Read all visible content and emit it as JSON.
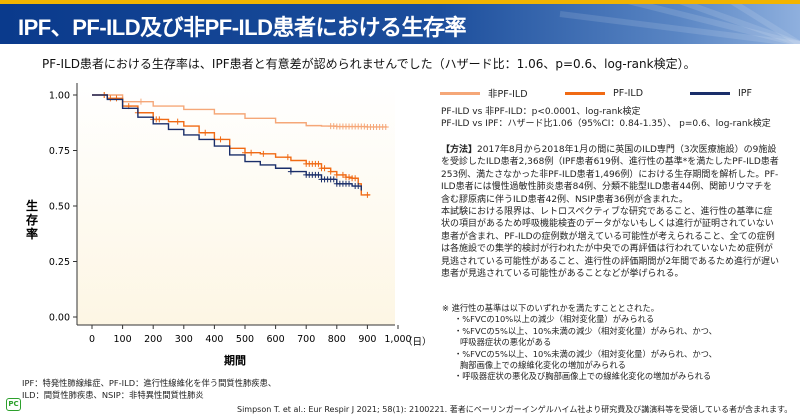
{
  "header": {
    "title": "IPF、PF-ILD及び非PF-ILD患者における生存率"
  },
  "subtitle": "PF-ILD患者における生存率は、IPF患者と有意差が認められませんでした（ハザード比：1.06、p=0.6、log-rank検定）。",
  "chart_data": {
    "type": "line",
    "xlabel": "期間",
    "xunit": "（日）",
    "ylabel": "生存率",
    "xlim": [
      0,
      1000
    ],
    "ylim": [
      0,
      1
    ],
    "xticks": [
      "0",
      "100",
      "200",
      "300",
      "400",
      "500",
      "600",
      "700",
      "800",
      "900",
      "1,000"
    ],
    "yticks": [
      "0.00",
      "0.25",
      "0.50",
      "0.75",
      "1.00"
    ],
    "legend": "top",
    "series": [
      {
        "name": "非PF-ILD",
        "color": "#f5a778",
        "x": [
          0,
          100,
          200,
          300,
          400,
          500,
          600,
          700,
          750,
          800,
          900,
          964
        ],
        "y": [
          1,
          0.97,
          0.95,
          0.935,
          0.915,
          0.895,
          0.875,
          0.862,
          0.86,
          0.858,
          0.856,
          0.856
        ],
        "censor": [
          40,
          160,
          780,
          790,
          800,
          810,
          820,
          830,
          840,
          850,
          860,
          870,
          880,
          890,
          900,
          910,
          920,
          930,
          940,
          950,
          960
        ]
      },
      {
        "name": "PF-ILD",
        "color": "#f06a14",
        "x": [
          0,
          50,
          100,
          150,
          200,
          250,
          300,
          350,
          400,
          450,
          500,
          550,
          600,
          650,
          700,
          750,
          780,
          800,
          830,
          850,
          870,
          880,
          908
        ],
        "y": [
          1,
          0.985,
          0.95,
          0.92,
          0.89,
          0.88,
          0.86,
          0.83,
          0.8,
          0.76,
          0.74,
          0.735,
          0.72,
          0.705,
          0.69,
          0.67,
          0.655,
          0.64,
          0.63,
          0.625,
          0.6,
          0.55,
          0.55
        ],
        "censor": [
          40,
          60,
          80,
          120,
          150,
          200,
          210,
          220,
          280,
          370,
          420,
          500,
          520,
          560,
          640,
          700,
          710,
          720,
          730,
          740,
          750,
          760,
          780,
          800,
          820,
          830,
          840,
          850,
          860,
          900
        ]
      },
      {
        "name": "IPF",
        "color": "#1a2e6a",
        "x": [
          0,
          50,
          100,
          150,
          200,
          250,
          300,
          350,
          400,
          450,
          500,
          550,
          600,
          650,
          700,
          750,
          800,
          850,
          880
        ],
        "y": [
          1,
          0.98,
          0.94,
          0.9,
          0.87,
          0.845,
          0.82,
          0.8,
          0.77,
          0.73,
          0.7,
          0.685,
          0.67,
          0.655,
          0.64,
          0.62,
          0.6,
          0.59,
          0.57
        ],
        "censor": [
          650,
          700,
          710,
          720,
          730,
          740,
          750,
          760,
          770,
          780,
          790,
          800,
          810,
          820,
          830,
          840,
          860,
          870
        ]
      }
    ]
  },
  "stats": [
    "PF-ILD vs 非PF-ILD：p<0.0001、log-rank検定",
    "PF-ILD vs IPF：ハザード比1.06（95%CI：0.84-1.35）、 p=0.6、log-rank検定"
  ],
  "method": {
    "label": "【方法】",
    "text": "2017年8月から2018年1月の間に英国のILD専門（3次医療施設）の9施設を受診したILD患者2,368例（IPF患者619例、進行性の基準*を満たしたPF-ILD患者253例、満たさなかった非PF-ILD患者1,496例）における生存期間を解析した。PF-ILD患者には慢性過敏性肺炎患者84例、分類不能型ILD患者44例、関節リウマチを含む膠原病に伴うILD患者42例、NSIP患者36例が含まれた。",
    "limits": "本試験における限界は、レトロスペクティブな研究であること、進行性の基準に症状の項目があるため呼吸機能検査のデータがないもしくは進行が証明されていない患者が含まれ、PF-ILDの症例数が増えている可能性が考えられること、全ての症例は各施設での集学的検討が行われたが中央での再評価は行われていないため症例が見逃されている可能性があること、進行性の評価期間が2年間であるため進行が遅い患者が見逃されている可能性があることなどが挙げられる。"
  },
  "note": {
    "head": "※ 進行性の基準は以下のいずれかを満たすこととされた。",
    "items": [
      "・%FVCの10%以上の減少（相対変化量）がみられる",
      "・%FVCの5%以上、10%未満の減少（相対変化量）がみられ、かつ、",
      "呼吸器症状の悪化がある",
      "・%FVCの5%以上、10%未満の減少（相対変化量）がみられ、かつ、",
      "胸部画像上での線維化変化の増加がみられる",
      "・呼吸器症状の悪化及び胸部画像上での線維化変化の増加がみられる"
    ]
  },
  "abbr": [
    "IPF：特発性肺線維症、PF-ILD：進行性線維化を伴う間質性肺疾患、",
    "ILD：間質性肺疾患、NSIP：非特異性間質性肺炎"
  ],
  "logo": "PC",
  "citation": "Simpson T. et al.: Eur Respir J 2021; 58(1): 2100221. 著者にベーリンガーインゲルハイム社より研究費及び講演料等を受領している者が含まれます。"
}
